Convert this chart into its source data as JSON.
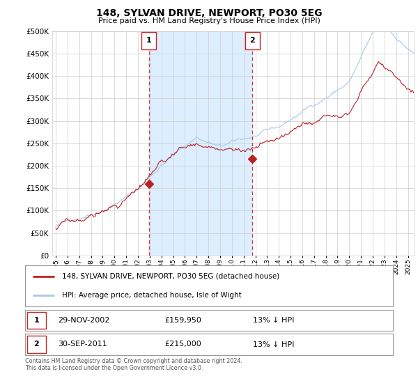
{
  "title": "148, SYLVAN DRIVE, NEWPORT, PO30 5EG",
  "subtitle": "Price paid vs. HM Land Registry's House Price Index (HPI)",
  "legend_line1": "148, SYLVAN DRIVE, NEWPORT, PO30 5EG (detached house)",
  "legend_line2": "HPI: Average price, detached house, Isle of Wight",
  "marker1_date": "29-NOV-2002",
  "marker1_price": "£159,950",
  "marker1_hpi": "13% ↓ HPI",
  "marker1_year": 2002.92,
  "marker1_value": 159950,
  "marker2_date": "30-SEP-2011",
  "marker2_price": "£215,000",
  "marker2_hpi": "13% ↓ HPI",
  "marker2_year": 2011.75,
  "marker2_value": 215000,
  "shade_start": 2002.92,
  "shade_end": 2011.75,
  "ylim": [
    0,
    500000
  ],
  "yticks": [
    0,
    50000,
    100000,
    150000,
    200000,
    250000,
    300000,
    350000,
    400000,
    450000,
    500000
  ],
  "xlim_start": 1994.7,
  "xlim_end": 2025.5,
  "xticks": [
    1995,
    1996,
    1997,
    1998,
    1999,
    2000,
    2001,
    2002,
    2003,
    2004,
    2005,
    2006,
    2007,
    2008,
    2009,
    2010,
    2011,
    2012,
    2013,
    2014,
    2015,
    2016,
    2017,
    2018,
    2019,
    2020,
    2021,
    2022,
    2023,
    2024,
    2025
  ],
  "hpi_color": "#a8c8e8",
  "price_color": "#bb2222",
  "shade_color": "#ddeeff",
  "background_color": "#ffffff",
  "grid_color": "#cccccc",
  "footnote": "Contains HM Land Registry data © Crown copyright and database right 2024.\nThis data is licensed under the Open Government Licence v3.0."
}
